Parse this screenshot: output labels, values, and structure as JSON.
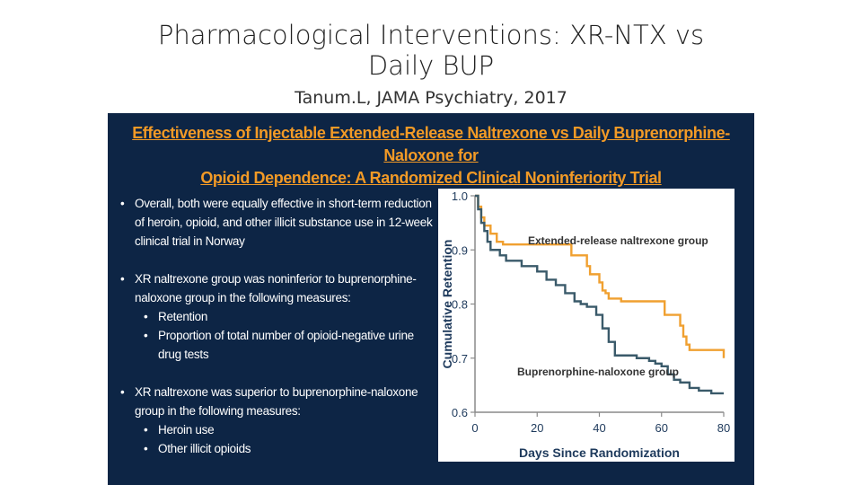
{
  "slide": {
    "title_line1": "Pharmacological Interventions: XR-NTX vs",
    "title_line2": "Daily BUP",
    "subtitle": "Tanum.L, JAMA Psychiatry, 2017"
  },
  "panel": {
    "heading_line1": "Effectiveness of Injectable Extended-Release Naltrexone vs Daily Buprenorphine-Naloxone for",
    "heading_line2": "Opioid Dependence: A Randomized Clinical Noninferiority Trial",
    "bullets": [
      {
        "text": "Overall, both were equally effective in short-term reduction of heroin, opioid, and other illicit substance use in 12-week clinical trial in Norway",
        "subs": []
      },
      {
        "text": "XR naltrexone group was noninferior to buprenorphine-naloxone group in the following measures:",
        "subs": [
          "Retention",
          "Proportion of total number of opioid-negative urine drug tests"
        ]
      },
      {
        "text": "XR naltrexone was superior to buprenorphine-naloxone group in the following measures:",
        "subs": [
          "Heroin use",
          "Other illicit opioids"
        ]
      }
    ]
  },
  "chart_data": {
    "type": "line",
    "xlabel": "Days Since Randomization",
    "ylabel": "Cumulative Retention",
    "xlim": [
      0,
      80
    ],
    "ylim": [
      0.6,
      1.0
    ],
    "xticks": [
      "0",
      "20",
      "40",
      "60",
      "80"
    ],
    "yticks": [
      "0.6",
      "0.7",
      "0.8",
      "0.9",
      "1.0"
    ],
    "grid": false,
    "series": [
      {
        "name": "Extended-release naltrexone group",
        "color": "#f0a030",
        "x": [
          0,
          1,
          2,
          3,
          5,
          7,
          9,
          30,
          31,
          36,
          37,
          40,
          41,
          42,
          43,
          46,
          47,
          60,
          61,
          66,
          67,
          68,
          69,
          80
        ],
        "y": [
          1.0,
          0.98,
          0.96,
          0.945,
          0.93,
          0.915,
          0.91,
          0.91,
          0.89,
          0.87,
          0.855,
          0.84,
          0.825,
          0.82,
          0.81,
          0.81,
          0.805,
          0.805,
          0.78,
          0.76,
          0.74,
          0.725,
          0.715,
          0.7
        ]
      },
      {
        "name": "Buprenorphine-naloxone group",
        "color": "#3a5a6a",
        "x": [
          0,
          1,
          2,
          3,
          4,
          5,
          8,
          10,
          15,
          20,
          23,
          26,
          29,
          32,
          34,
          36,
          39,
          41,
          43,
          45,
          48,
          52,
          56,
          58,
          60,
          62,
          64,
          66,
          69,
          72,
          76,
          80
        ],
        "y": [
          1.0,
          0.975,
          0.95,
          0.935,
          0.915,
          0.9,
          0.89,
          0.88,
          0.87,
          0.86,
          0.845,
          0.835,
          0.82,
          0.805,
          0.8,
          0.795,
          0.78,
          0.755,
          0.73,
          0.705,
          0.705,
          0.7,
          0.695,
          0.69,
          0.685,
          0.67,
          0.66,
          0.655,
          0.645,
          0.64,
          0.635,
          0.635
        ]
      }
    ]
  }
}
